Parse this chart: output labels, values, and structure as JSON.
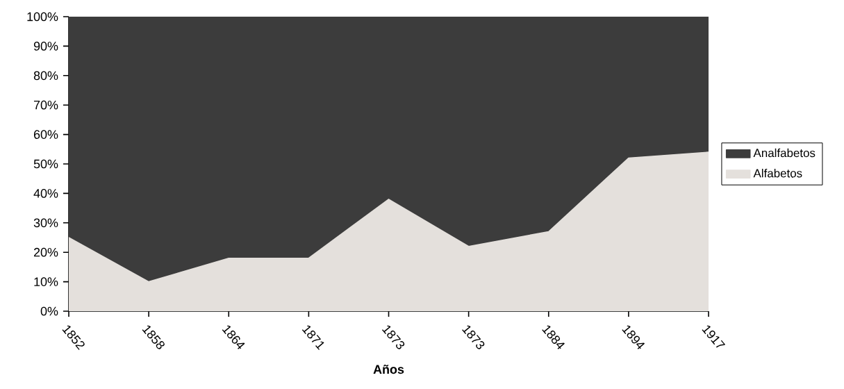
{
  "chart_data": {
    "type": "area",
    "stacked": true,
    "xlabel": "Años",
    "categories": [
      "1852",
      "1858",
      "1864",
      "1871",
      "1873",
      "1873",
      "1884",
      "1894",
      "1917"
    ],
    "series": [
      {
        "name": "Alfabetos",
        "color": "#e4e0dc",
        "values": [
          25,
          10,
          18,
          18,
          38,
          22,
          27,
          52,
          54
        ]
      },
      {
        "name": "Analfabetos",
        "color": "#3c3c3c",
        "values": [
          75,
          90,
          82,
          82,
          62,
          78,
          73,
          48,
          46
        ]
      }
    ],
    "ylim": [
      0,
      100
    ],
    "yticks": [
      {
        "value": 0,
        "label": "0%"
      },
      {
        "value": 10,
        "label": "10%"
      },
      {
        "value": 20,
        "label": "20%"
      },
      {
        "value": 30,
        "label": "30%"
      },
      {
        "value": 40,
        "label": "40%"
      },
      {
        "value": 50,
        "label": "50%"
      },
      {
        "value": 60,
        "label": "60%"
      },
      {
        "value": 70,
        "label": "70%"
      },
      {
        "value": 80,
        "label": "80%"
      },
      {
        "value": 90,
        "label": "90%"
      },
      {
        "value": 100,
        "label": "100%"
      }
    ],
    "legend": "right",
    "grid": false
  }
}
